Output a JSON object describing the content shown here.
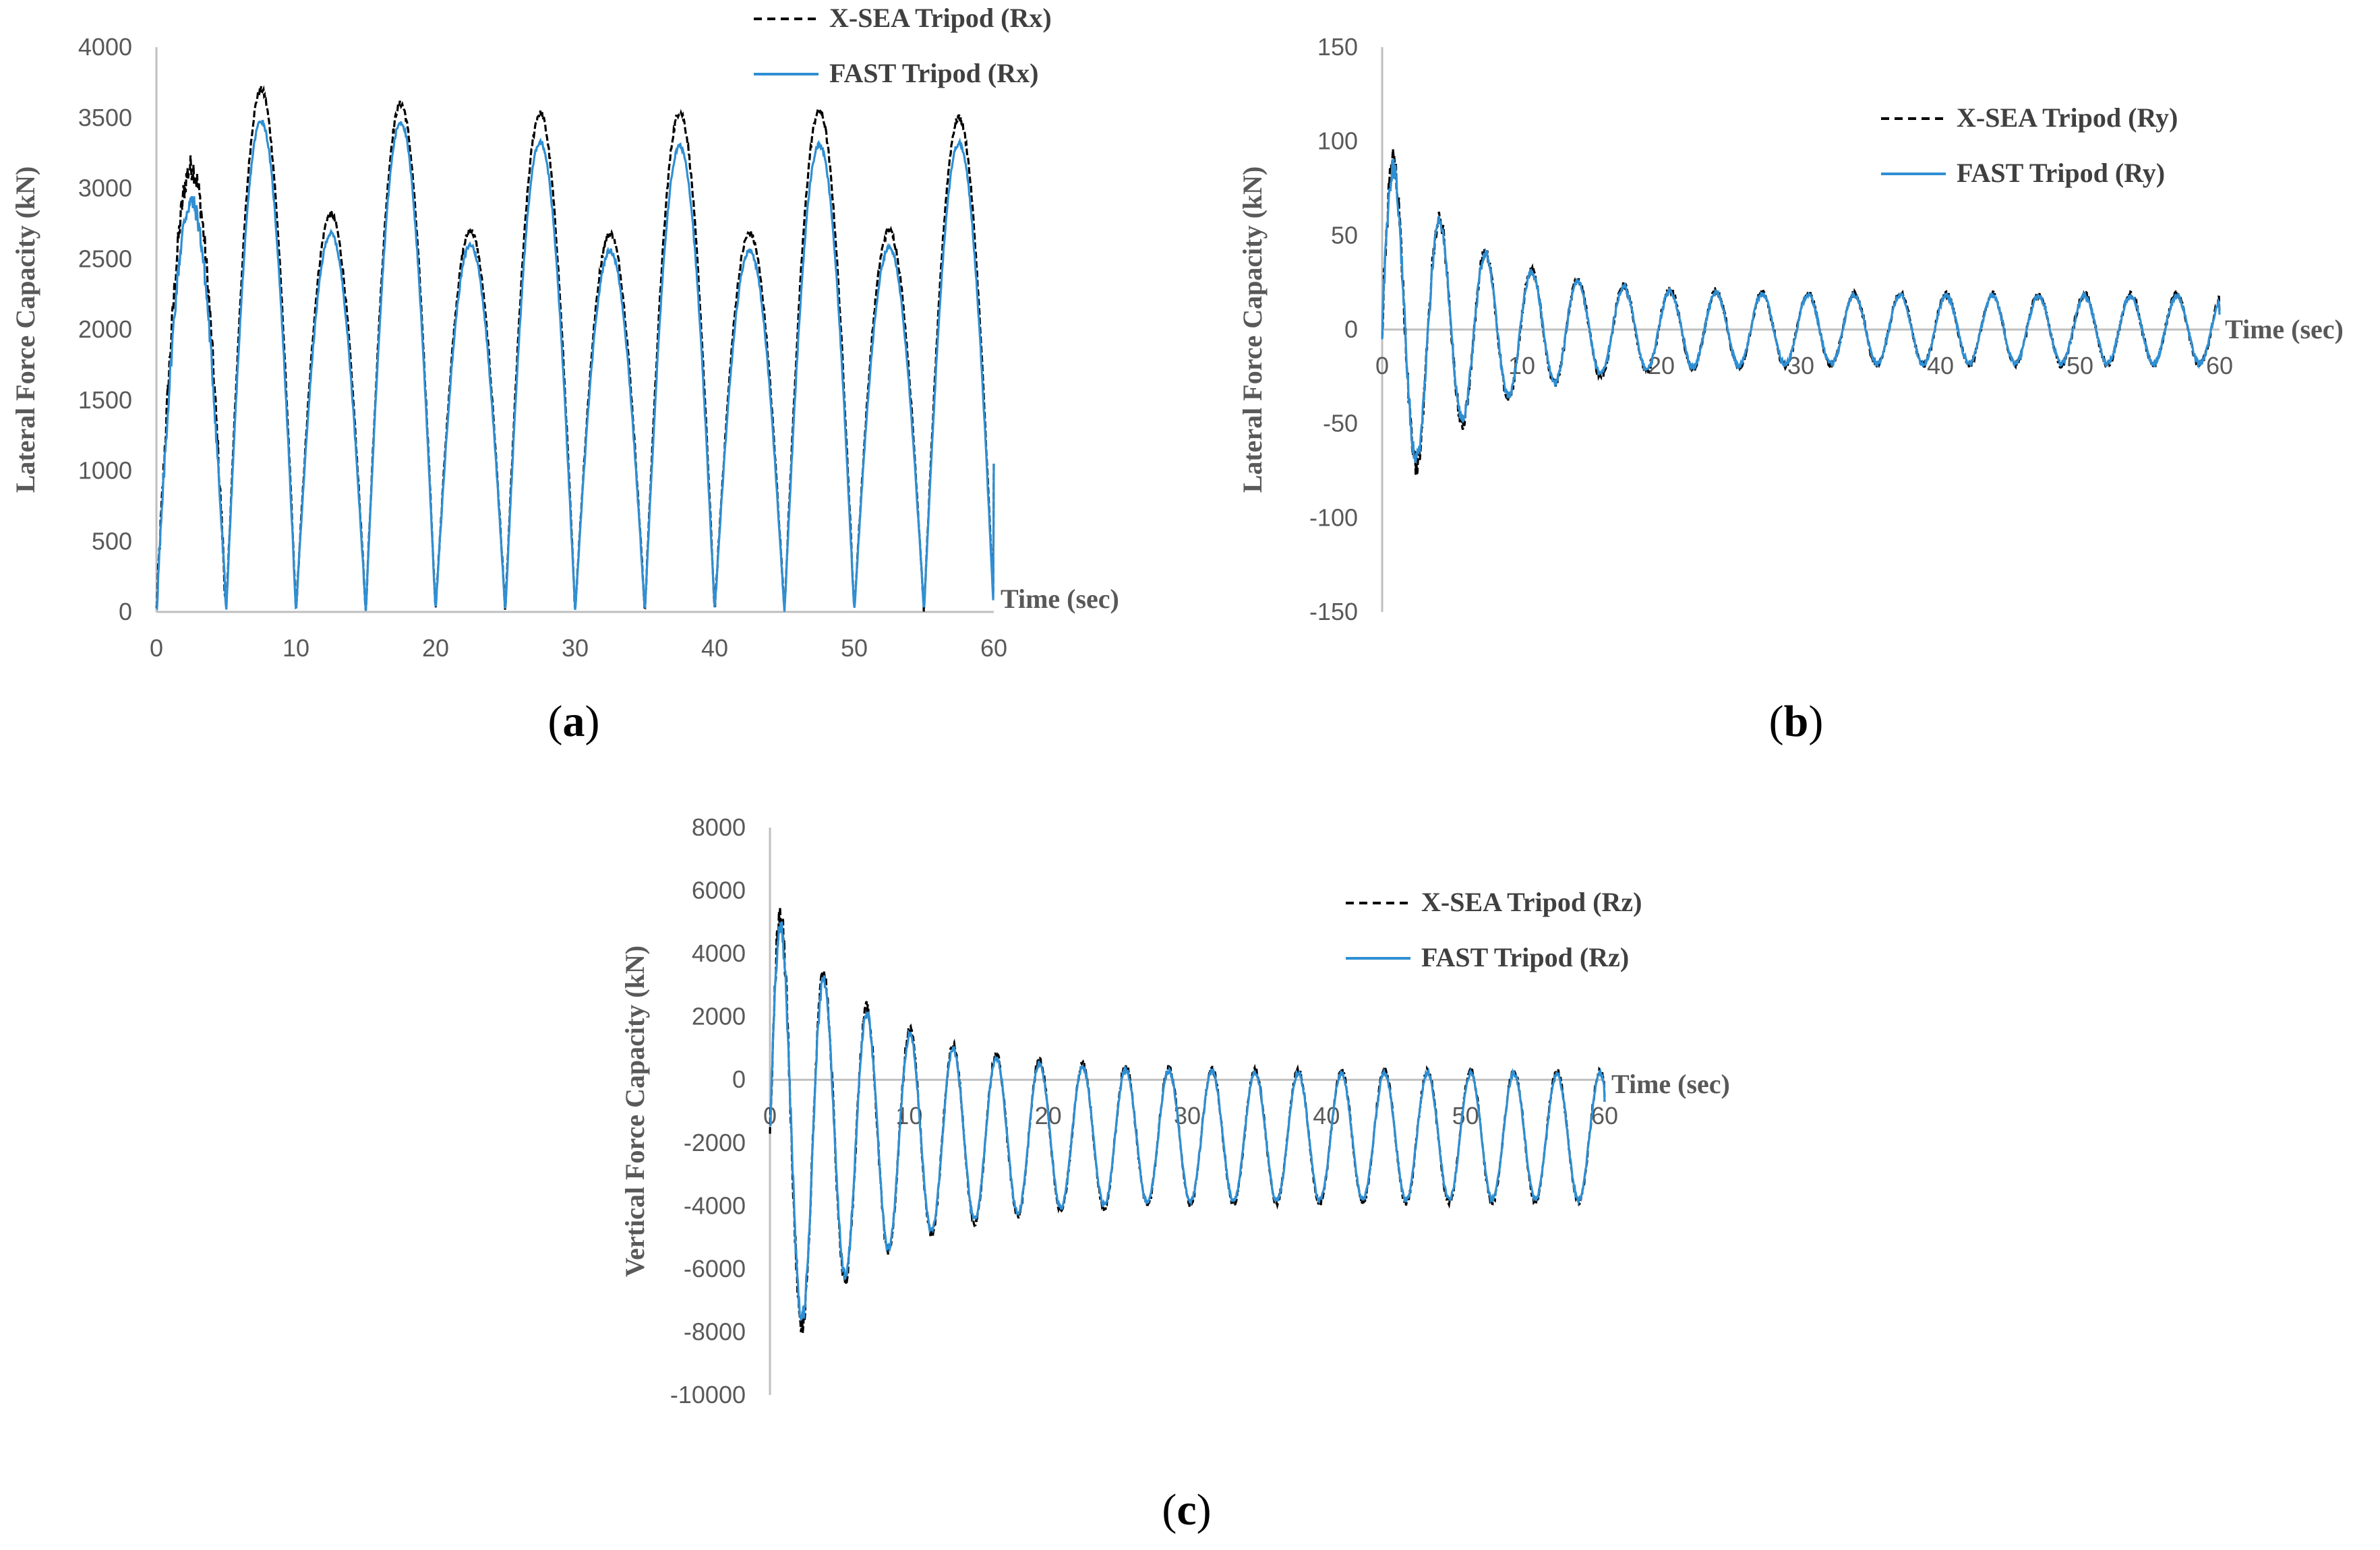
{
  "colors": {
    "xsea": "#000000",
    "fast": "#2f8fd3",
    "axis": "#bfbfbf",
    "text": "#595959"
  },
  "chart_data": [
    {
      "id": "a",
      "type": "line",
      "panel_label": "a",
      "ylabel": "Lateral Force Capacity (kN)",
      "xlabel": "Time (sec)",
      "xlim": [
        0,
        60
      ],
      "ylim": [
        0,
        4000
      ],
      "xticks": [
        "0",
        "10",
        "20",
        "30",
        "40",
        "50",
        "60"
      ],
      "yticks": [
        "0",
        "500",
        "1000",
        "1500",
        "2000",
        "2500",
        "3000",
        "3500",
        "4000"
      ],
      "legend_position": "top-right",
      "series": [
        {
          "name": "X-SEA Tripod (Rx)",
          "style": "dashed"
        },
        {
          "name": "FAST Tripod (Rx)",
          "style": "solid"
        }
      ],
      "shape": {
        "kind": "abs_sine",
        "half_period_s": 5,
        "first_zero_s": 0,
        "duration_s": 60,
        "end_value": 1050,
        "fast_peaks": [
          2900,
          3480,
          2680,
          3470,
          2600,
          3330,
          2560,
          3300,
          2560,
          3310,
          2580,
          3320
        ],
        "xsea_peaks": [
          3150,
          3700,
          2820,
          3600,
          2700,
          3530,
          2680,
          3540,
          2680,
          3550,
          2700,
          3500
        ]
      }
    },
    {
      "id": "b",
      "type": "line",
      "panel_label": "b",
      "ylabel": "Lateral Force Capacity (kN)",
      "xlabel": "Time (sec)",
      "xlim": [
        0,
        60
      ],
      "ylim": [
        -150,
        150
      ],
      "xticks": [
        "0",
        "10",
        "20",
        "30",
        "40",
        "50",
        "60"
      ],
      "yticks": [
        "-150",
        "-100",
        "-50",
        "0",
        "50",
        "100",
        "150"
      ],
      "legend_position": "top-right",
      "series": [
        {
          "name": "X-SEA Tripod (Ry)",
          "style": "dashed"
        },
        {
          "name": "FAST Tripod (Ry)",
          "style": "solid"
        }
      ],
      "shape": {
        "kind": "decaying_sine",
        "period_s": 3.3,
        "initial_amplitude": 95,
        "final_amplitude": 18,
        "decay_time_s": 6,
        "offset": 0,
        "end_value": 8,
        "duration_s": 60
      }
    },
    {
      "id": "c",
      "type": "line",
      "panel_label": "c",
      "ylabel": "Vertical Force Capacity (kN)",
      "xlabel": "Time (sec)",
      "xlim": [
        0,
        60
      ],
      "ylim": [
        -10000,
        8000
      ],
      "xticks": [
        "0",
        "10",
        "20",
        "30",
        "40",
        "50",
        "60"
      ],
      "yticks": [
        "-10000",
        "-8000",
        "-6000",
        "-4000",
        "-2000",
        "0",
        "2000",
        "4000",
        "6000",
        "8000"
      ],
      "legend_position": "top-right",
      "series": [
        {
          "name": "X-SEA Tripod (Rz)",
          "style": "dashed"
        },
        {
          "name": "FAST Tripod (Rz)",
          "style": "solid"
        }
      ],
      "shape": {
        "kind": "decaying_sine",
        "period_s": 3.1,
        "initial_amplitude": 7200,
        "final_amplitude": 2000,
        "decay_time_s": 7,
        "offset": -1800,
        "end_value": -700,
        "duration_s": 60
      }
    }
  ]
}
